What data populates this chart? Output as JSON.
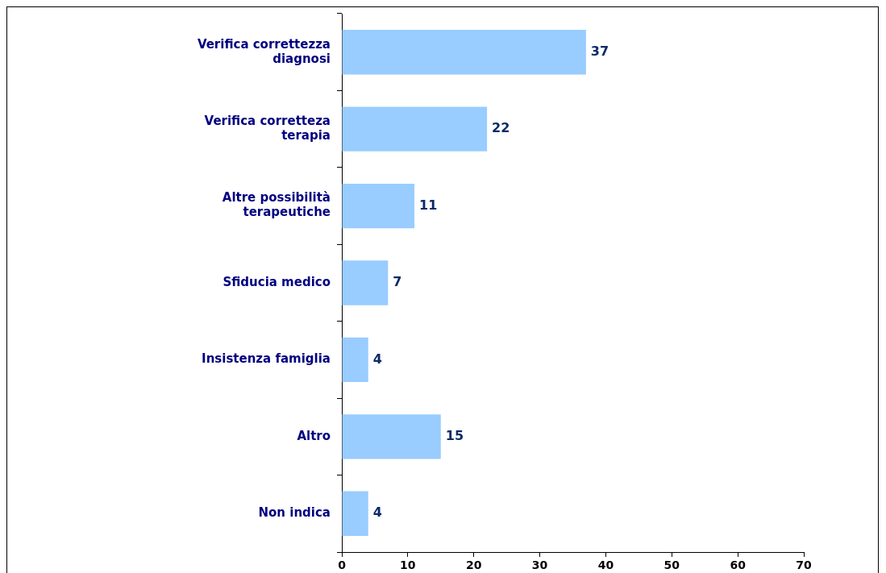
{
  "chart_data": {
    "type": "bar",
    "orientation": "horizontal",
    "categories": [
      "Verifica correttezza diagnosi",
      "Verifica corretteza terapia",
      "Altre possibilità terapeutiche",
      "Sfiducia medico",
      "Insistenza famiglia",
      "Altro",
      "Non indica"
    ],
    "values": [
      37,
      22,
      11,
      7,
      4,
      15,
      4
    ],
    "color": "#99ccff",
    "xlim": [
      0,
      70
    ],
    "xticks": [
      0,
      10,
      20,
      30,
      40,
      50,
      60,
      70
    ],
    "data_labels": true,
    "grid": false,
    "legend": false
  }
}
